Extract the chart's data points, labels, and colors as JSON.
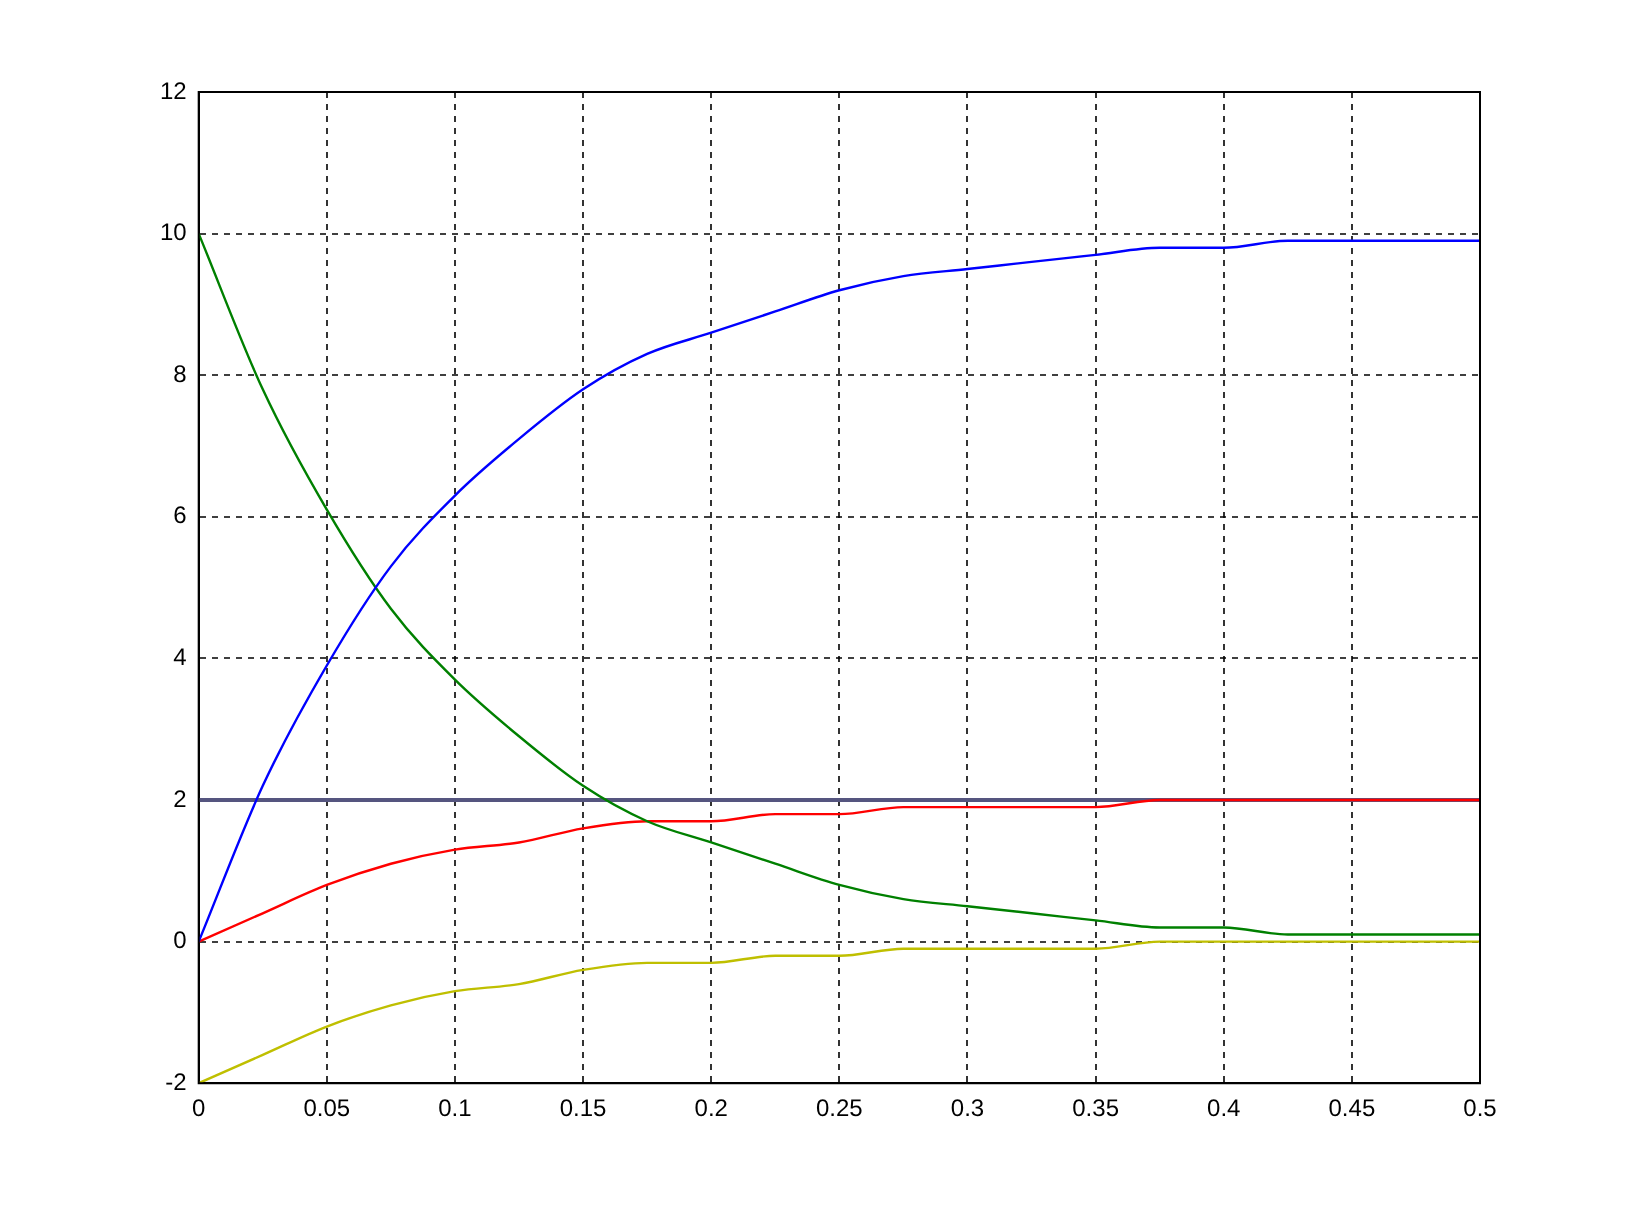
{
  "chart_data": {
    "type": "line",
    "x": [
      0,
      0.025,
      0.05,
      0.075,
      0.1,
      0.125,
      0.15,
      0.175,
      0.2,
      0.225,
      0.25,
      0.275,
      0.3,
      0.325,
      0.35,
      0.375,
      0.4,
      0.425,
      0.45,
      0.475,
      0.5
    ],
    "series": [
      {
        "color": "#0000ff",
        "values": [
          0,
          2.2,
          3.9,
          5.3,
          6.3,
          7.1,
          7.8,
          8.3,
          8.6,
          8.9,
          9.2,
          9.4,
          9.5,
          9.6,
          9.7,
          9.8,
          9.8,
          9.9,
          9.9,
          9.9,
          9.9
        ]
      },
      {
        "color": "#008000",
        "values": [
          10,
          7.8,
          6.1,
          4.7,
          3.7,
          2.9,
          2.2,
          1.7,
          1.4,
          1.1,
          0.8,
          0.6,
          0.5,
          0.4,
          0.3,
          0.2,
          0.2,
          0.1,
          0.1,
          0.1,
          0.1
        ]
      },
      {
        "color": "#ff0000",
        "values": [
          0,
          0.4,
          0.8,
          1.1,
          1.3,
          1.4,
          1.6,
          1.7,
          1.7,
          1.8,
          1.8,
          1.9,
          1.9,
          1.9,
          1.9,
          2,
          2,
          2,
          2,
          2,
          2
        ]
      },
      {
        "color": "#bfbf00",
        "values": [
          -2,
          -1.6,
          -1.2,
          -0.9,
          -0.7,
          -0.6,
          -0.4,
          -0.3,
          -0.3,
          -0.2,
          -0.2,
          -0.1,
          -0.1,
          -0.1,
          -0.1,
          0,
          0,
          0,
          0,
          0,
          0
        ]
      }
    ],
    "ref_lines": [
      {
        "axis": "y",
        "value": 2,
        "color": "#55557f"
      }
    ],
    "xlim": [
      0,
      0.5
    ],
    "xticks": [
      0,
      0.05,
      0.1,
      0.15,
      0.2,
      0.25,
      0.3,
      0.35,
      0.4,
      0.45,
      0.5
    ],
    "ylim": [
      -2,
      12
    ],
    "yticks": [
      -2,
      0,
      2,
      4,
      6,
      8,
      10,
      12
    ],
    "grid": true,
    "legend": false
  }
}
